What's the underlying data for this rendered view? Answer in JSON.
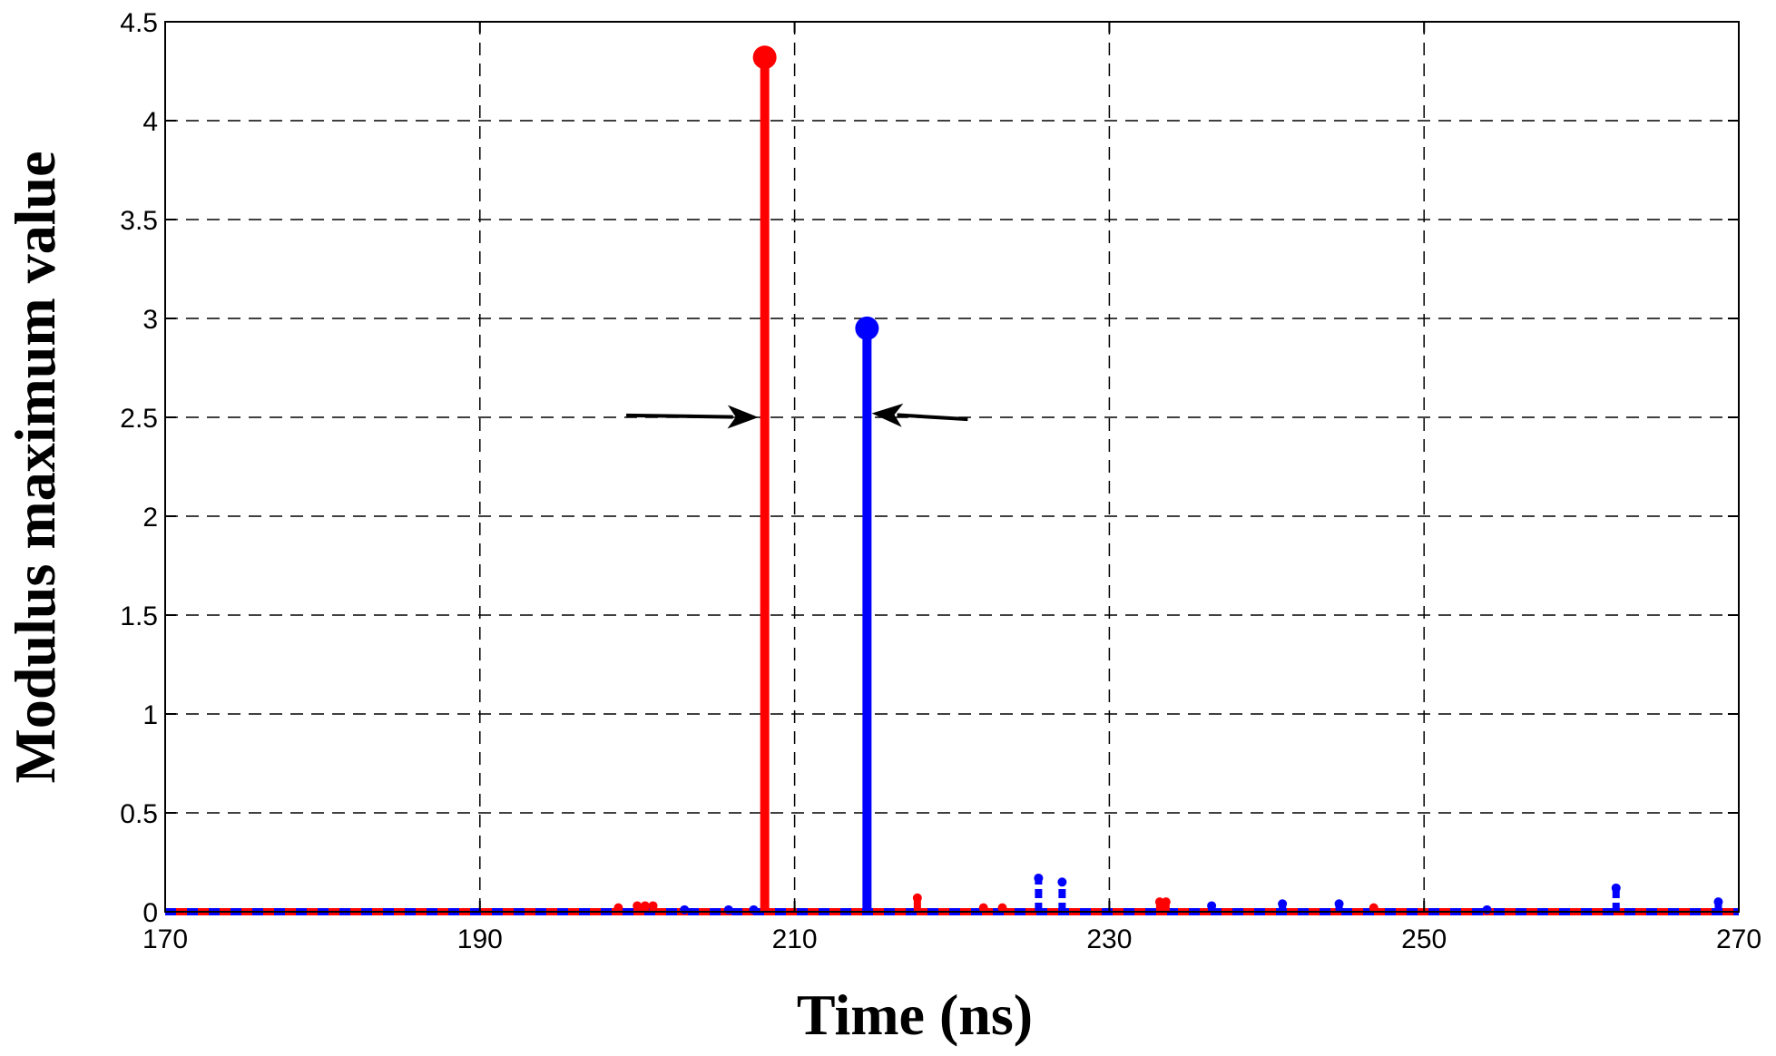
{
  "chart_data": {
    "type": "stem",
    "xlabel": "Time (ns)",
    "ylabel": "Modulus maximum value",
    "xlim": [
      170,
      270
    ],
    "ylim": [
      0,
      4.5
    ],
    "xticks": [
      170,
      190,
      210,
      230,
      250,
      270
    ],
    "yticks": [
      0,
      0.5,
      1,
      1.5,
      2,
      2.5,
      3,
      3.5,
      4,
      4.5
    ],
    "ytick_labels": [
      "0",
      "0.5",
      "1",
      "1.5",
      "2",
      "2.5",
      "3",
      "3.5",
      "4",
      "4.5"
    ],
    "grid": true,
    "series": [
      {
        "color": "#ff0000",
        "line_style": "solid",
        "points": [
          {
            "x": 198.8,
            "y": 0.02
          },
          {
            "x": 200.0,
            "y": 0.03
          },
          {
            "x": 200.5,
            "y": 0.03
          },
          {
            "x": 201.0,
            "y": 0.03
          },
          {
            "x": 208.1,
            "y": 4.32
          },
          {
            "x": 217.8,
            "y": 0.07
          },
          {
            "x": 222.0,
            "y": 0.02
          },
          {
            "x": 223.2,
            "y": 0.02
          },
          {
            "x": 233.2,
            "y": 0.05
          },
          {
            "x": 233.6,
            "y": 0.05
          },
          {
            "x": 246.8,
            "y": 0.02
          }
        ]
      },
      {
        "color": "#0000ff",
        "line_style": "dashed",
        "points": [
          {
            "x": 203.0,
            "y": 0.01
          },
          {
            "x": 205.8,
            "y": 0.01
          },
          {
            "x": 207.4,
            "y": 0.01
          },
          {
            "x": 214.6,
            "y": 2.95
          },
          {
            "x": 225.5,
            "y": 0.17
          },
          {
            "x": 227.0,
            "y": 0.15
          },
          {
            "x": 236.5,
            "y": 0.03
          },
          {
            "x": 241.0,
            "y": 0.04
          },
          {
            "x": 244.6,
            "y": 0.04
          },
          {
            "x": 254.0,
            "y": 0.01
          },
          {
            "x": 262.2,
            "y": 0.12
          },
          {
            "x": 268.7,
            "y": 0.05
          }
        ]
      }
    ],
    "annotations": [
      {
        "type": "arrow",
        "from": [
          199.3,
          2.51
        ],
        "to": [
          207.7,
          2.5
        ]
      },
      {
        "type": "arrow",
        "from": [
          221.0,
          2.49
        ],
        "to": [
          214.9,
          2.52
        ]
      }
    ]
  }
}
